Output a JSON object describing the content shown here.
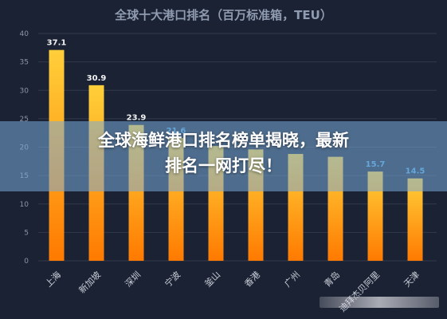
{
  "chart_data": {
    "type": "bar",
    "title": "全球十大港口排名（百万标准箱，TEU）",
    "categories": [
      "上海",
      "新加坡",
      "深圳",
      "宁波",
      "釜山",
      "香港",
      "广州",
      "青岛",
      "迪拜杰贝阿里",
      "天津"
    ],
    "values": [
      37.1,
      30.9,
      23.9,
      21.6,
      20.2,
      19.6,
      18.8,
      18.3,
      15.7,
      14.5
    ],
    "data_labels": [
      "37.1",
      "30.9",
      "23.9",
      "21.6",
      "",
      "",
      "",
      "",
      "15.7",
      "14.5"
    ],
    "xlabel": "",
    "ylabel": "",
    "ylim": [
      0,
      40
    ],
    "yticks": [
      0,
      5,
      10,
      15,
      20,
      25,
      30,
      35,
      40
    ],
    "grid": true,
    "colors": {
      "background": "#1b2233",
      "bar_top": "#ffcf3a",
      "bar_bottom": "#ff7a00",
      "grid": "#313a4d",
      "tick_text": "#8a96a8",
      "label_top": "#f2f2f2",
      "label_blue": "#4fa3e0"
    }
  },
  "overlay": {
    "line1": "全球海鲜港口排名榜单揭晓，最新",
    "line2": "排名一网打尽！"
  }
}
